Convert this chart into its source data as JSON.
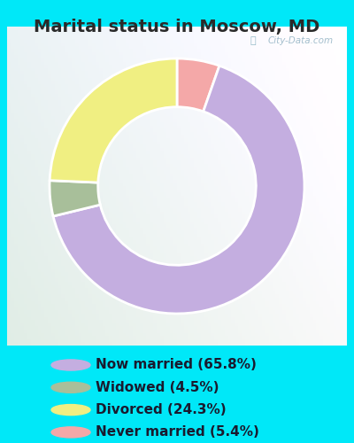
{
  "title": "Marital status in Moscow, MD",
  "slices": [
    65.8,
    4.5,
    24.3,
    5.4
  ],
  "labels": [
    "Now married (65.8%)",
    "Widowed (4.5%)",
    "Divorced (24.3%)",
    "Never married (5.4%)"
  ],
  "colors": [
    "#c4aee0",
    "#a8bf9a",
    "#f0ef82",
    "#f4a8a8"
  ],
  "bg_cyan": "#00e8f8",
  "bg_chart_color1": "#e8f5ee",
  "bg_chart_color2": "#f5f5f8",
  "watermark": "City-Data.com",
  "title_fontsize": 14,
  "legend_fontsize": 11,
  "donut_width": 0.38
}
